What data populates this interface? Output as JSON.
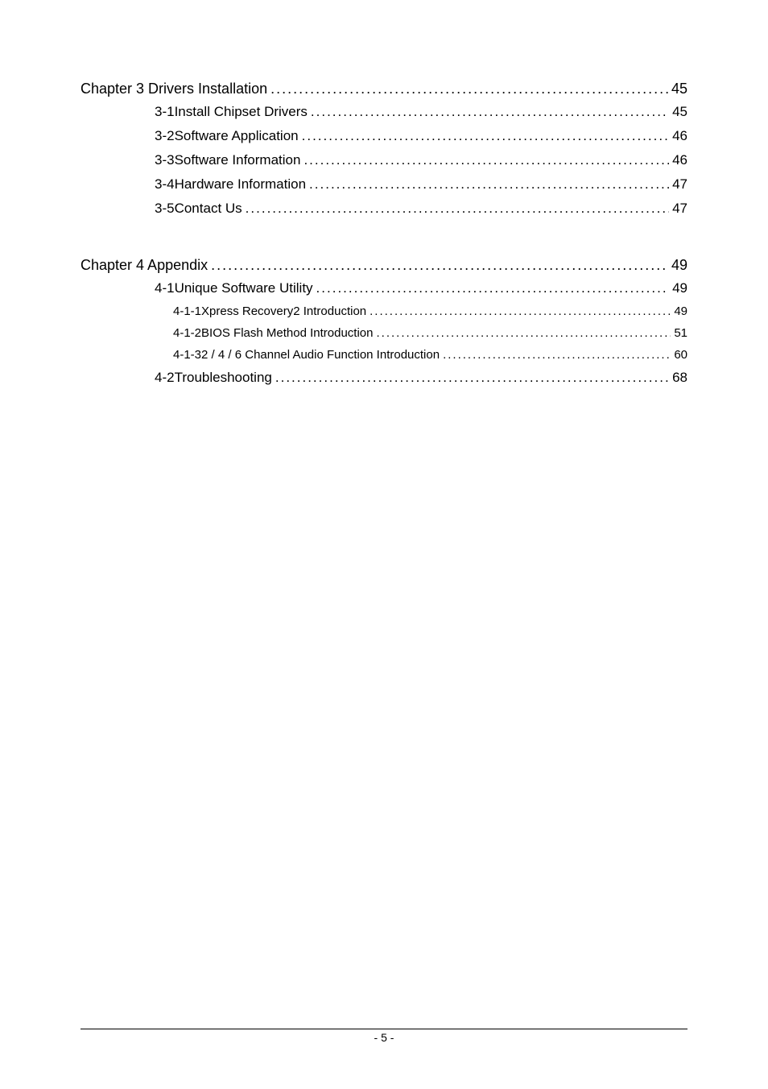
{
  "toc": {
    "chapter3": {
      "title": "Chapter 3  Drivers Installation",
      "page": "45",
      "sections": [
        {
          "num": "3-1",
          "title": "Install Chipset Drivers",
          "page": "45"
        },
        {
          "num": "3-2",
          "title": "Software Application",
          "page": "46"
        },
        {
          "num": "3-3",
          "title": "Software Information",
          "page": "46"
        },
        {
          "num": "3-4",
          "title": "Hardware Information",
          "page": "47"
        },
        {
          "num": "3-5",
          "title": "Contact Us",
          "page": "47"
        }
      ]
    },
    "chapter4": {
      "title": "Chapter 4 Appendix",
      "page": "49",
      "sections": [
        {
          "num": "4-1",
          "title": "Unique Software Utility",
          "page": "49",
          "subs": [
            {
              "num": "4-1-1",
              "title": "Xpress Recovery2 Introduction",
              "page": "49"
            },
            {
              "num": "4-1-2",
              "title": "BIOS Flash Method Introduction",
              "page": "51"
            },
            {
              "num": "4-1-3",
              "title": "2 / 4 / 6 Channel Audio Function Introduction",
              "page": "60"
            }
          ]
        },
        {
          "num": "4-2",
          "title": "Troubleshooting",
          "page": "68"
        }
      ]
    }
  },
  "footer": {
    "page_label": "- 5 -"
  }
}
